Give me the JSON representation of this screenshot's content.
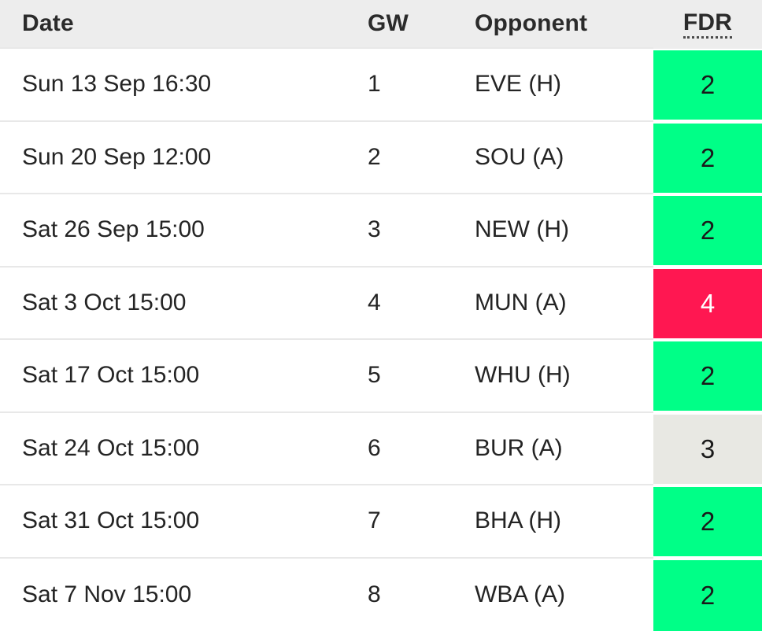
{
  "table": {
    "columns": [
      "Date",
      "GW",
      "Opponent",
      "FDR"
    ],
    "rows": [
      {
        "date": "Sun 13 Sep 16:30",
        "gw": "1",
        "opponent": "EVE (H)",
        "fdr": "2"
      },
      {
        "date": "Sun 20 Sep 12:00",
        "gw": "2",
        "opponent": "SOU (A)",
        "fdr": "2"
      },
      {
        "date": "Sat 26 Sep 15:00",
        "gw": "3",
        "opponent": "NEW (H)",
        "fdr": "2"
      },
      {
        "date": "Sat 3 Oct 15:00",
        "gw": "4",
        "opponent": "MUN (A)",
        "fdr": "4"
      },
      {
        "date": "Sat 17 Oct 15:00",
        "gw": "5",
        "opponent": "WHU (H)",
        "fdr": "2"
      },
      {
        "date": "Sat 24 Oct 15:00",
        "gw": "6",
        "opponent": "BUR (A)",
        "fdr": "3"
      },
      {
        "date": "Sat 31 Oct 15:00",
        "gw": "7",
        "opponent": "BHA (H)",
        "fdr": "2"
      },
      {
        "date": "Sat 7 Nov 15:00",
        "gw": "8",
        "opponent": "WBA (A)",
        "fdr": "2"
      }
    ]
  },
  "colors": {
    "header_bg": "#ededed",
    "row_separator": "#e8e8e8",
    "text": "#242424",
    "fdr_2": "#00ff87",
    "fdr_3": "#e8e8e3",
    "fdr_4": "#ff1751",
    "fdr_text_dark": "#1a1a1a",
    "fdr_text_light": "#ffffff"
  }
}
